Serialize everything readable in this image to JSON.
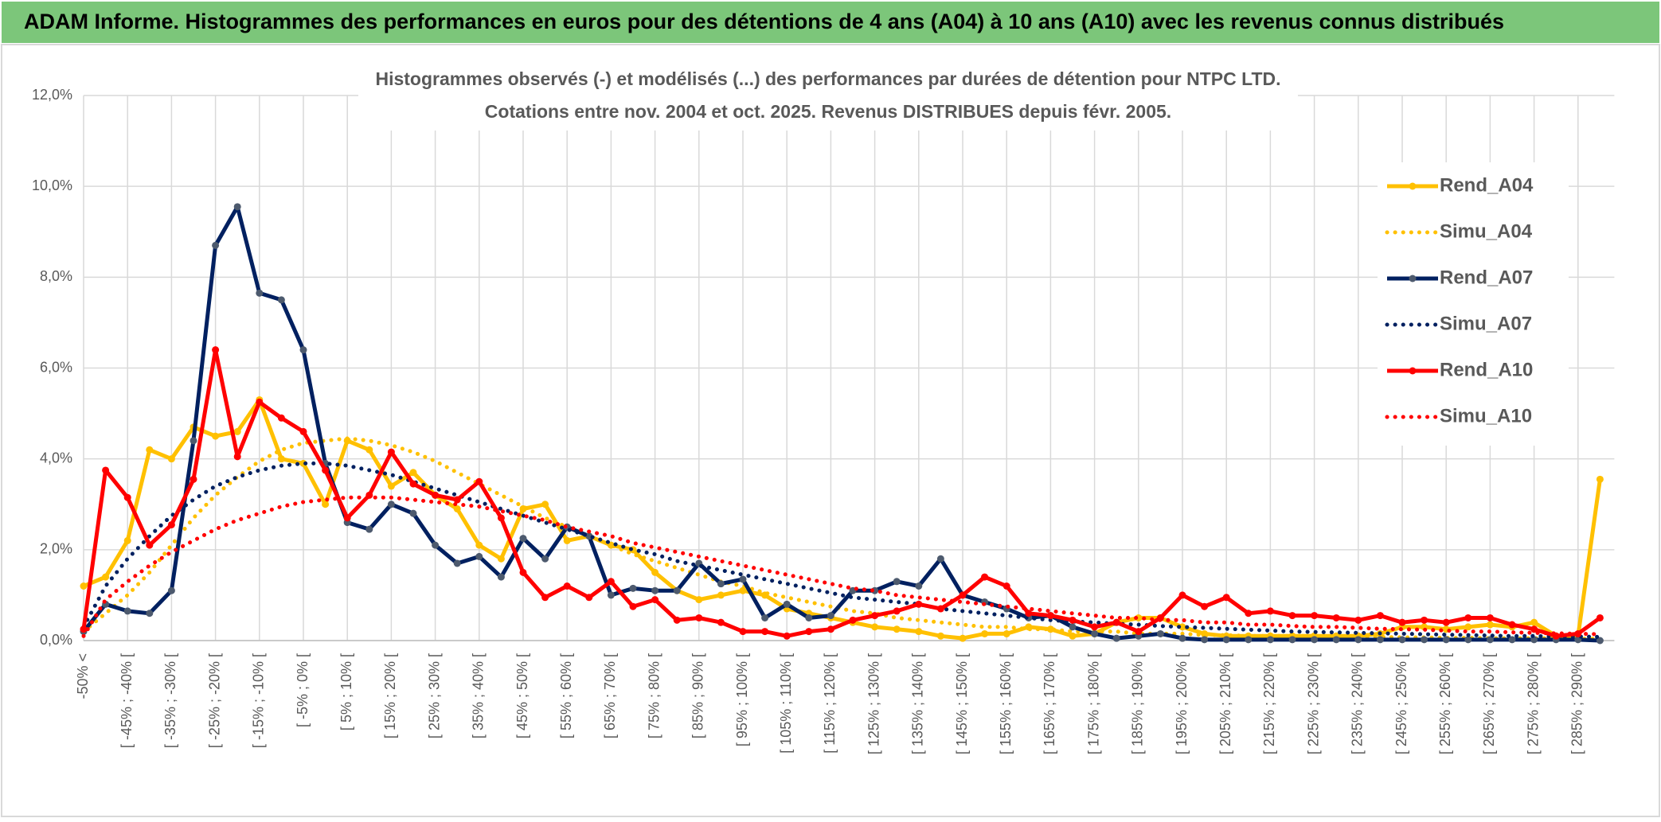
{
  "banner": "ADAM Informe. Histogrammes des performances en euros pour des détentions de 4 ans (A04) à 10 ans (A10) avec les revenus connus distribués",
  "chart_data": {
    "type": "line",
    "title_lines": [
      "Histogrammes observés (-) et modélisés (...) des performances par durées de détention pour NTPC LTD.",
      "Cotations entre nov. 2004 et oct. 2025. Revenus DISTRIBUES depuis févr. 2005."
    ],
    "categories": [
      "-50% <",
      null,
      "[ -45% ; -40% [",
      null,
      "[ -35% ; -30% [",
      null,
      "[ -25% ; -20% [",
      null,
      "[ -15% ; -10% [",
      null,
      "[ -5% ; 0% [",
      null,
      "[ 5% ; 10% [",
      null,
      "[ 15% ; 20% [",
      null,
      "[ 25% ; 30% [",
      null,
      "[ 35% ; 40% [",
      null,
      "[ 45% ; 50% [",
      null,
      "[ 55% ; 60% [",
      null,
      "[ 65% ; 70% [",
      null,
      "[ 75% ; 80% [",
      null,
      "[ 85% ; 90% [",
      null,
      "[ 95% ; 100% [",
      null,
      "[ 105% ; 110% [",
      null,
      "[ 115% ; 120% [",
      null,
      "[ 125% ; 130% [",
      null,
      "[ 135% ; 140% [",
      null,
      "[ 145% ; 150% [",
      null,
      "[ 155% ; 160% [",
      null,
      "[ 165% ; 170% [",
      null,
      "[ 175% ; 180% [",
      null,
      "[ 185% ; 190% [",
      null,
      "[ 195% ; 200% [",
      null,
      "[ 205% ; 210% [",
      null,
      "[ 215% ; 220% [",
      null,
      "[ 225% ; 230% [",
      null,
      "[ 235% ; 240% [",
      null,
      "[ 245% ; 250% [",
      null,
      "[ 255% ; 260% [",
      null,
      "[ 265% ; 270% [",
      null,
      "[ 275% ; 280% [",
      null,
      "[ 285% ; 290% [",
      null
    ],
    "ylim": [
      0,
      12
    ],
    "yticks": [
      {
        "value": 0,
        "label": "0,0%"
      },
      {
        "value": 2,
        "label": "2,0%"
      },
      {
        "value": 4,
        "label": "4,0%"
      },
      {
        "value": 6,
        "label": "6,0%"
      },
      {
        "value": 8,
        "label": "8,0%"
      },
      {
        "value": 10,
        "label": "10,0%"
      },
      {
        "value": 12,
        "label": "12,0%"
      }
    ],
    "grid": true,
    "legend": "right",
    "series": [
      {
        "name": "Rend_A04",
        "color": "#FFC000",
        "line_style": "solid",
        "markers": true,
        "values": [
          1.2,
          1.4,
          2.2,
          4.2,
          4.0,
          4.7,
          4.5,
          4.6,
          5.3,
          4.0,
          3.9,
          3.0,
          4.4,
          4.2,
          3.4,
          3.7,
          3.2,
          2.9,
          2.1,
          1.8,
          2.9,
          3.0,
          2.2,
          2.3,
          2.1,
          2.0,
          1.5,
          1.1,
          0.9,
          1.0,
          1.1,
          1.0,
          0.7,
          0.6,
          0.5,
          0.4,
          0.3,
          0.25,
          0.2,
          0.1,
          0.05,
          0.15,
          0.15,
          0.3,
          0.25,
          0.1,
          0.15,
          0.4,
          0.5,
          0.5,
          0.3,
          0.15,
          0.1,
          0.1,
          0.1,
          0.1,
          0.1,
          0.1,
          0.1,
          0.15,
          0.3,
          0.3,
          0.25,
          0.3,
          0.35,
          0.3,
          0.4,
          0.1,
          0.1,
          3.55
        ]
      },
      {
        "name": "Simu_A04",
        "color": "#FFC000",
        "line_style": "dotted",
        "markers": false,
        "values": [
          0.2,
          0.6,
          1.0,
          1.5,
          2.1,
          2.7,
          3.2,
          3.6,
          3.95,
          4.2,
          4.35,
          4.4,
          4.45,
          4.4,
          4.3,
          4.15,
          3.95,
          3.7,
          3.45,
          3.2,
          2.95,
          2.7,
          2.5,
          2.3,
          2.1,
          1.9,
          1.75,
          1.6,
          1.45,
          1.3,
          1.2,
          1.05,
          0.95,
          0.85,
          0.75,
          0.65,
          0.6,
          0.5,
          0.45,
          0.4,
          0.35,
          0.3,
          0.3,
          0.25,
          0.25,
          0.2,
          0.2,
          0.2,
          0.15,
          0.15,
          0.15,
          0.12,
          0.12,
          0.1,
          0.1,
          0.1,
          0.1,
          0.08,
          0.08,
          0.08,
          0.07,
          0.07,
          0.06,
          0.06,
          0.05,
          0.05,
          0.05,
          0.05,
          0.04,
          0.04
        ]
      },
      {
        "name": "Rend_A07",
        "color": "#002060",
        "line_style": "solid",
        "markers": true,
        "values": [
          0.2,
          0.8,
          0.65,
          0.6,
          1.1,
          4.4,
          8.7,
          9.55,
          7.65,
          7.5,
          6.4,
          3.9,
          2.6,
          2.45,
          3.0,
          2.8,
          2.1,
          1.7,
          1.85,
          1.4,
          2.25,
          1.8,
          2.5,
          2.3,
          1.0,
          1.15,
          1.1,
          1.1,
          1.7,
          1.25,
          1.35,
          0.5,
          0.8,
          0.5,
          0.55,
          1.1,
          1.1,
          1.3,
          1.2,
          1.8,
          1.0,
          0.85,
          0.7,
          0.5,
          0.55,
          0.3,
          0.15,
          0.05,
          0.1,
          0.15,
          0.05,
          0.02,
          0.02,
          0.02,
          0.02,
          0.02,
          0.02,
          0.02,
          0.02,
          0.02,
          0.02,
          0.02,
          0.02,
          0.02,
          0.02,
          0.02,
          0.02,
          0.02,
          0.02,
          0
        ]
      },
      {
        "name": "Simu_A07",
        "color": "#002060",
        "line_style": "dotted",
        "markers": false,
        "values": [
          0.3,
          1.2,
          1.8,
          2.3,
          2.75,
          3.1,
          3.4,
          3.6,
          3.75,
          3.85,
          3.9,
          3.9,
          3.85,
          3.75,
          3.65,
          3.5,
          3.35,
          3.2,
          3.05,
          2.9,
          2.75,
          2.6,
          2.45,
          2.3,
          2.15,
          2.0,
          1.9,
          1.75,
          1.65,
          1.55,
          1.45,
          1.35,
          1.25,
          1.15,
          1.05,
          0.95,
          0.9,
          0.85,
          0.8,
          0.7,
          0.65,
          0.6,
          0.55,
          0.5,
          0.45,
          0.42,
          0.4,
          0.37,
          0.35,
          0.32,
          0.3,
          0.28,
          0.26,
          0.24,
          0.22,
          0.2,
          0.19,
          0.18,
          0.17,
          0.16,
          0.15,
          0.14,
          0.13,
          0.12,
          0.11,
          0.1,
          0.1,
          0.09,
          0.09,
          0.08
        ]
      },
      {
        "name": "Rend_A10",
        "color": "#FF0000",
        "line_style": "solid",
        "markers": true,
        "values": [
          0.25,
          3.75,
          3.15,
          2.1,
          2.55,
          3.55,
          6.4,
          4.05,
          5.25,
          4.9,
          4.6,
          3.75,
          2.7,
          3.2,
          4.15,
          3.45,
          3.2,
          3.1,
          3.5,
          2.7,
          1.5,
          0.95,
          1.2,
          0.95,
          1.3,
          0.75,
          0.9,
          0.45,
          0.5,
          0.4,
          0.2,
          0.2,
          0.1,
          0.2,
          0.25,
          0.45,
          0.55,
          0.65,
          0.8,
          0.7,
          1.0,
          1.4,
          1.2,
          0.6,
          0.55,
          0.45,
          0.3,
          0.4,
          0.2,
          0.5,
          1.0,
          0.75,
          0.95,
          0.6,
          0.65,
          0.55,
          0.55,
          0.5,
          0.45,
          0.55,
          0.4,
          0.45,
          0.4,
          0.5,
          0.5,
          0.35,
          0.25,
          0.1,
          0.15,
          0.5
        ]
      },
      {
        "name": "Simu_A10",
        "color": "#FF0000",
        "line_style": "dotted",
        "markers": false,
        "values": [
          0.1,
          0.9,
          1.3,
          1.65,
          1.95,
          2.2,
          2.45,
          2.65,
          2.8,
          2.95,
          3.05,
          3.1,
          3.15,
          3.15,
          3.15,
          3.1,
          3.05,
          3.0,
          2.95,
          2.85,
          2.75,
          2.65,
          2.5,
          2.4,
          2.3,
          2.15,
          2.05,
          1.95,
          1.85,
          1.75,
          1.65,
          1.55,
          1.45,
          1.35,
          1.25,
          1.15,
          1.1,
          1.0,
          0.95,
          0.9,
          0.85,
          0.8,
          0.75,
          0.7,
          0.65,
          0.6,
          0.55,
          0.5,
          0.5,
          0.45,
          0.45,
          0.4,
          0.4,
          0.35,
          0.35,
          0.32,
          0.3,
          0.3,
          0.28,
          0.26,
          0.25,
          0.24,
          0.22,
          0.2,
          0.2,
          0.18,
          0.17,
          0.16,
          0.15,
          0.14
        ]
      }
    ]
  }
}
